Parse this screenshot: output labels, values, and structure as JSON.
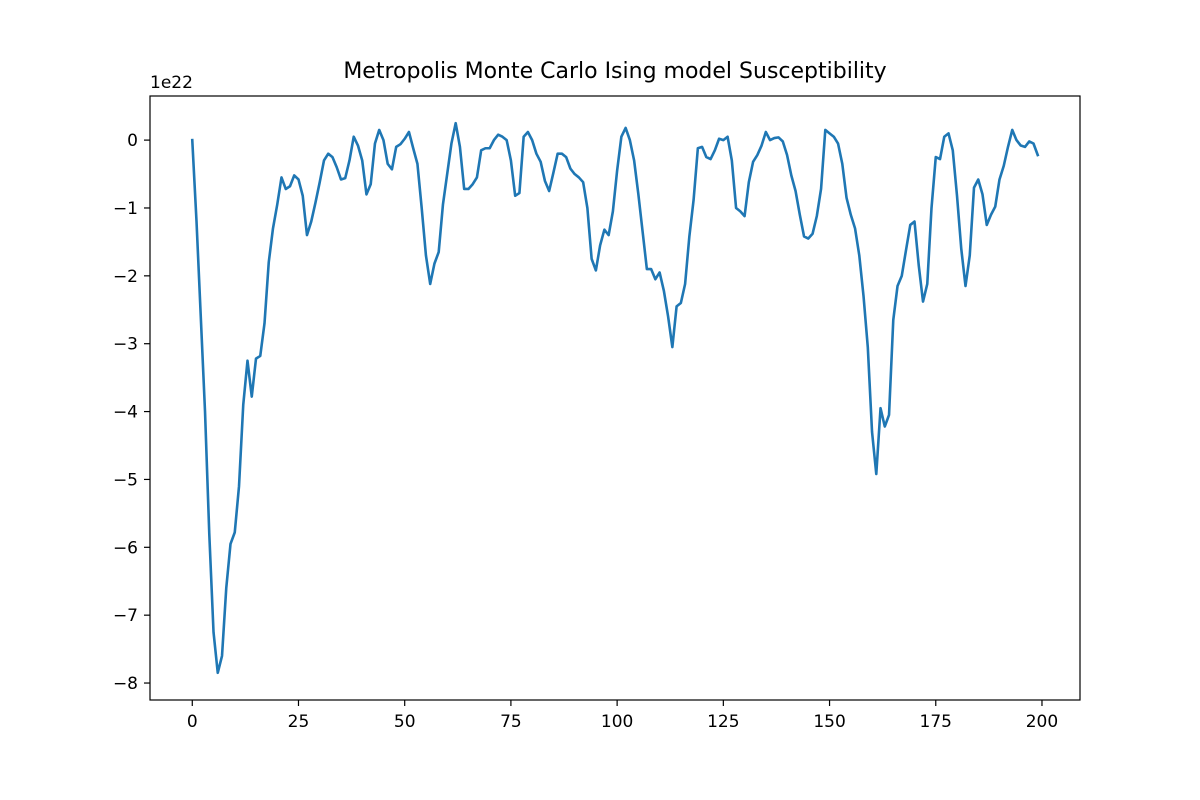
{
  "chart_data": {
    "type": "line",
    "title": "Metropolis Monte Carlo Ising model Susceptibility",
    "xlabel": "",
    "ylabel": "",
    "y_offset_label": "1e22",
    "y_scale_factor": 1e+22,
    "xlim": [
      -9.95,
      208.95
    ],
    "ylim": [
      -8.25,
      0.65
    ],
    "x_ticks": [
      0,
      25,
      50,
      75,
      100,
      125,
      150,
      175,
      200
    ],
    "y_ticks": [
      0,
      -1,
      -2,
      -3,
      -4,
      -5,
      -6,
      -7,
      -8
    ],
    "y_tick_labels": [
      "0",
      "−1",
      "−2",
      "−3",
      "−4",
      "−5",
      "−6",
      "−7",
      "−8"
    ],
    "grid": false,
    "line_color": "#1f77b4",
    "series": [
      {
        "values": [
          0.0,
          -1.2,
          -2.6,
          -4.0,
          -5.8,
          -7.25,
          -7.85,
          -7.6,
          -6.6,
          -5.95,
          -5.78,
          -5.1,
          -3.9,
          -3.25,
          -3.78,
          -3.22,
          -3.18,
          -2.7,
          -1.8,
          -1.3,
          -0.95,
          -0.55,
          -0.72,
          -0.68,
          -0.52,
          -0.58,
          -0.82,
          -1.4,
          -1.2,
          -0.92,
          -0.62,
          -0.3,
          -0.2,
          -0.25,
          -0.4,
          -0.58,
          -0.56,
          -0.3,
          0.05,
          -0.08,
          -0.3,
          -0.8,
          -0.65,
          -0.05,
          0.15,
          0.0,
          -0.35,
          -0.43,
          -0.1,
          -0.06,
          0.02,
          0.12,
          -0.12,
          -0.35,
          -1.0,
          -1.7,
          -2.12,
          -1.82,
          -1.65,
          -0.95,
          -0.5,
          -0.05,
          0.25,
          -0.1,
          -0.72,
          -0.72,
          -0.65,
          -0.55,
          -0.15,
          -0.12,
          -0.12,
          0.0,
          0.08,
          0.05,
          0.0,
          -0.3,
          -0.82,
          -0.78,
          0.05,
          0.12,
          0.0,
          -0.2,
          -0.32,
          -0.6,
          -0.75,
          -0.48,
          -0.2,
          -0.2,
          -0.25,
          -0.42,
          -0.5,
          -0.55,
          -0.62,
          -1.0,
          -1.75,
          -1.92,
          -1.55,
          -1.32,
          -1.4,
          -1.05,
          -0.45,
          0.05,
          0.18,
          0.0,
          -0.3,
          -0.8,
          -1.35,
          -1.9,
          -1.9,
          -2.05,
          -1.95,
          -2.22,
          -2.6,
          -3.05,
          -2.45,
          -2.4,
          -2.12,
          -1.42,
          -0.88,
          -0.12,
          -0.1,
          -0.25,
          -0.28,
          -0.15,
          0.02,
          0.0,
          0.05,
          -0.3,
          -1.0,
          -1.05,
          -1.12,
          -0.62,
          -0.32,
          -0.22,
          -0.08,
          0.12,
          0.0,
          0.03,
          0.04,
          -0.02,
          -0.22,
          -0.52,
          -0.75,
          -1.1,
          -1.42,
          -1.45,
          -1.38,
          -1.12,
          -0.72,
          0.15,
          0.1,
          0.05,
          -0.05,
          -0.35,
          -0.85,
          -1.1,
          -1.3,
          -1.7,
          -2.3,
          -3.05,
          -4.3,
          -4.92,
          -3.95,
          -4.22,
          -4.05,
          -2.65,
          -2.15,
          -2.0,
          -1.62,
          -1.25,
          -1.2,
          -1.85,
          -2.38,
          -2.12,
          -1.0,
          -0.25,
          -0.28,
          0.05,
          0.1,
          -0.15,
          -0.82,
          -1.6,
          -2.15,
          -1.7,
          -0.7,
          -0.58,
          -0.8,
          -1.25,
          -1.1,
          -0.98,
          -0.58,
          -0.38,
          -0.1,
          0.15,
          0.0,
          -0.08,
          -0.1,
          -0.02,
          -0.05,
          -0.22
        ]
      }
    ]
  }
}
